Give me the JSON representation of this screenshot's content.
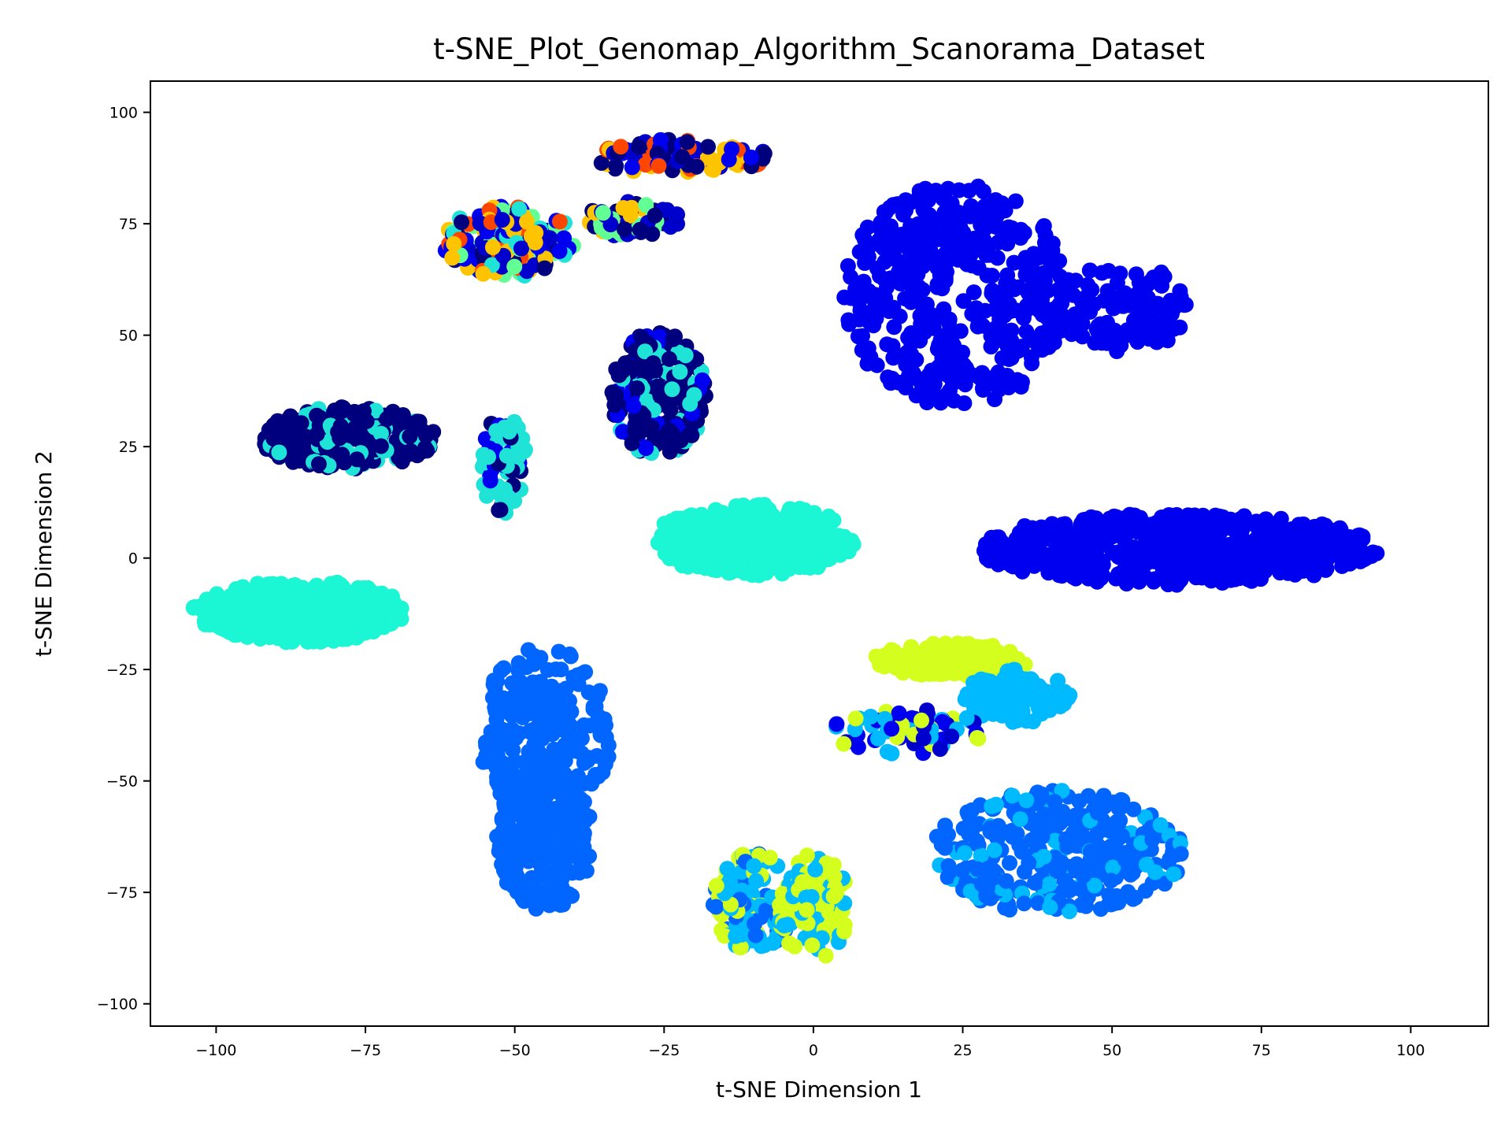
{
  "chart_data": {
    "type": "scatter",
    "title": "t-SNE_Plot_Genomap_Algorithm_Scanorama_Dataset",
    "xlabel": "t-SNE Dimension 1",
    "ylabel": "t-SNE Dimension 2",
    "xlim": [
      -111,
      113
    ],
    "ylim": [
      -105,
      107
    ],
    "xticks": [
      -100,
      -75,
      -50,
      -25,
      0,
      25,
      50,
      75,
      100
    ],
    "yticks": [
      -100,
      -75,
      -50,
      -25,
      0,
      25,
      50,
      75,
      100
    ],
    "grid": false,
    "legend": "none",
    "colormap": "jet",
    "clusters": [
      {
        "cx": -78,
        "cy": 27,
        "rx": 15,
        "ry": 7,
        "n": 260,
        "colors": [
          "#00007f",
          "#00007f",
          "#00007f",
          "#00007f",
          "#1ee3d6"
        ]
      },
      {
        "cx": -52,
        "cy": 21,
        "rx": 4,
        "ry": 11,
        "n": 70,
        "colors": [
          "#00007f",
          "#1ee3d6",
          "#1ee3d6",
          "#0000f1"
        ]
      },
      {
        "cx": -26,
        "cy": 37,
        "rx": 8,
        "ry": 14,
        "n": 220,
        "colors": [
          "#00007f",
          "#00007f",
          "#00007f",
          "#00007f",
          "#0000f1",
          "#1ee3d6"
        ]
      },
      {
        "cx": -51,
        "cy": 71,
        "rx": 11,
        "ry": 8,
        "n": 170,
        "colors": [
          "#ff4600",
          "#62ff94",
          "#0000cc",
          "#00007f",
          "#ffc400",
          "#0000f1",
          "#1ee3d6"
        ]
      },
      {
        "cx": -22,
        "cy": 90,
        "rx": 15,
        "ry": 4,
        "n": 100,
        "colors": [
          "#0000cc",
          "#00007f",
          "#ff4600",
          "#ffc400",
          "#0000f1"
        ]
      },
      {
        "cx": -30,
        "cy": 76,
        "rx": 8,
        "ry": 4,
        "n": 60,
        "colors": [
          "#0000cc",
          "#00007f",
          "#ffc400",
          "#62ff94"
        ]
      },
      {
        "cx": -86,
        "cy": -12,
        "rx": 18,
        "ry": 7,
        "n": 320,
        "colors": [
          "#1bf6d4"
        ]
      },
      {
        "cx": -10,
        "cy": 4,
        "rx": 17,
        "ry": 8,
        "n": 320,
        "colors": [
          "#1bf6d4"
        ]
      },
      {
        "cx": 24,
        "cy": 59,
        "rx": 19,
        "ry": 25,
        "n": 460,
        "colors": [
          "#0000f1"
        ]
      },
      {
        "cx": 52,
        "cy": 56,
        "rx": 11,
        "ry": 10,
        "n": 110,
        "colors": [
          "#0000f1"
        ]
      },
      {
        "cx": 61,
        "cy": 2,
        "rx": 34,
        "ry": 8,
        "n": 560,
        "colors": [
          "#0000f1"
        ]
      },
      {
        "cx": -45,
        "cy": -40,
        "rx": 11,
        "ry": 20,
        "n": 240,
        "colors": [
          "#0066ff"
        ]
      },
      {
        "cx": -45,
        "cy": -63,
        "rx": 8,
        "ry": 16,
        "n": 220,
        "colors": [
          "#0066ff"
        ]
      },
      {
        "cx": 41,
        "cy": -66,
        "rx": 21,
        "ry": 14,
        "n": 360,
        "colors": [
          "#0066ff",
          "#0066ff",
          "#0066ff",
          "#0066ff",
          "#00baff"
        ]
      },
      {
        "cx": 23,
        "cy": -23,
        "rx": 13,
        "ry": 4,
        "n": 120,
        "colors": [
          "#d4ff1e"
        ]
      },
      {
        "cx": 34,
        "cy": -31,
        "rx": 9,
        "ry": 6,
        "n": 100,
        "colors": [
          "#00baff"
        ]
      },
      {
        "cx": 16,
        "cy": -39,
        "rx": 13,
        "ry": 5,
        "n": 70,
        "colors": [
          "#0000cc",
          "#00baff",
          "#d4ff1e",
          "#0000f1"
        ]
      },
      {
        "cx": -10,
        "cy": -77,
        "rx": 7,
        "ry": 11,
        "n": 130,
        "colors": [
          "#00baff",
          "#00baff",
          "#0066ff",
          "#d4ff1e"
        ]
      },
      {
        "cx": 0,
        "cy": -78,
        "rx": 6,
        "ry": 12,
        "n": 100,
        "colors": [
          "#d4ff1e",
          "#d4ff1e",
          "#00baff"
        ]
      }
    ]
  }
}
